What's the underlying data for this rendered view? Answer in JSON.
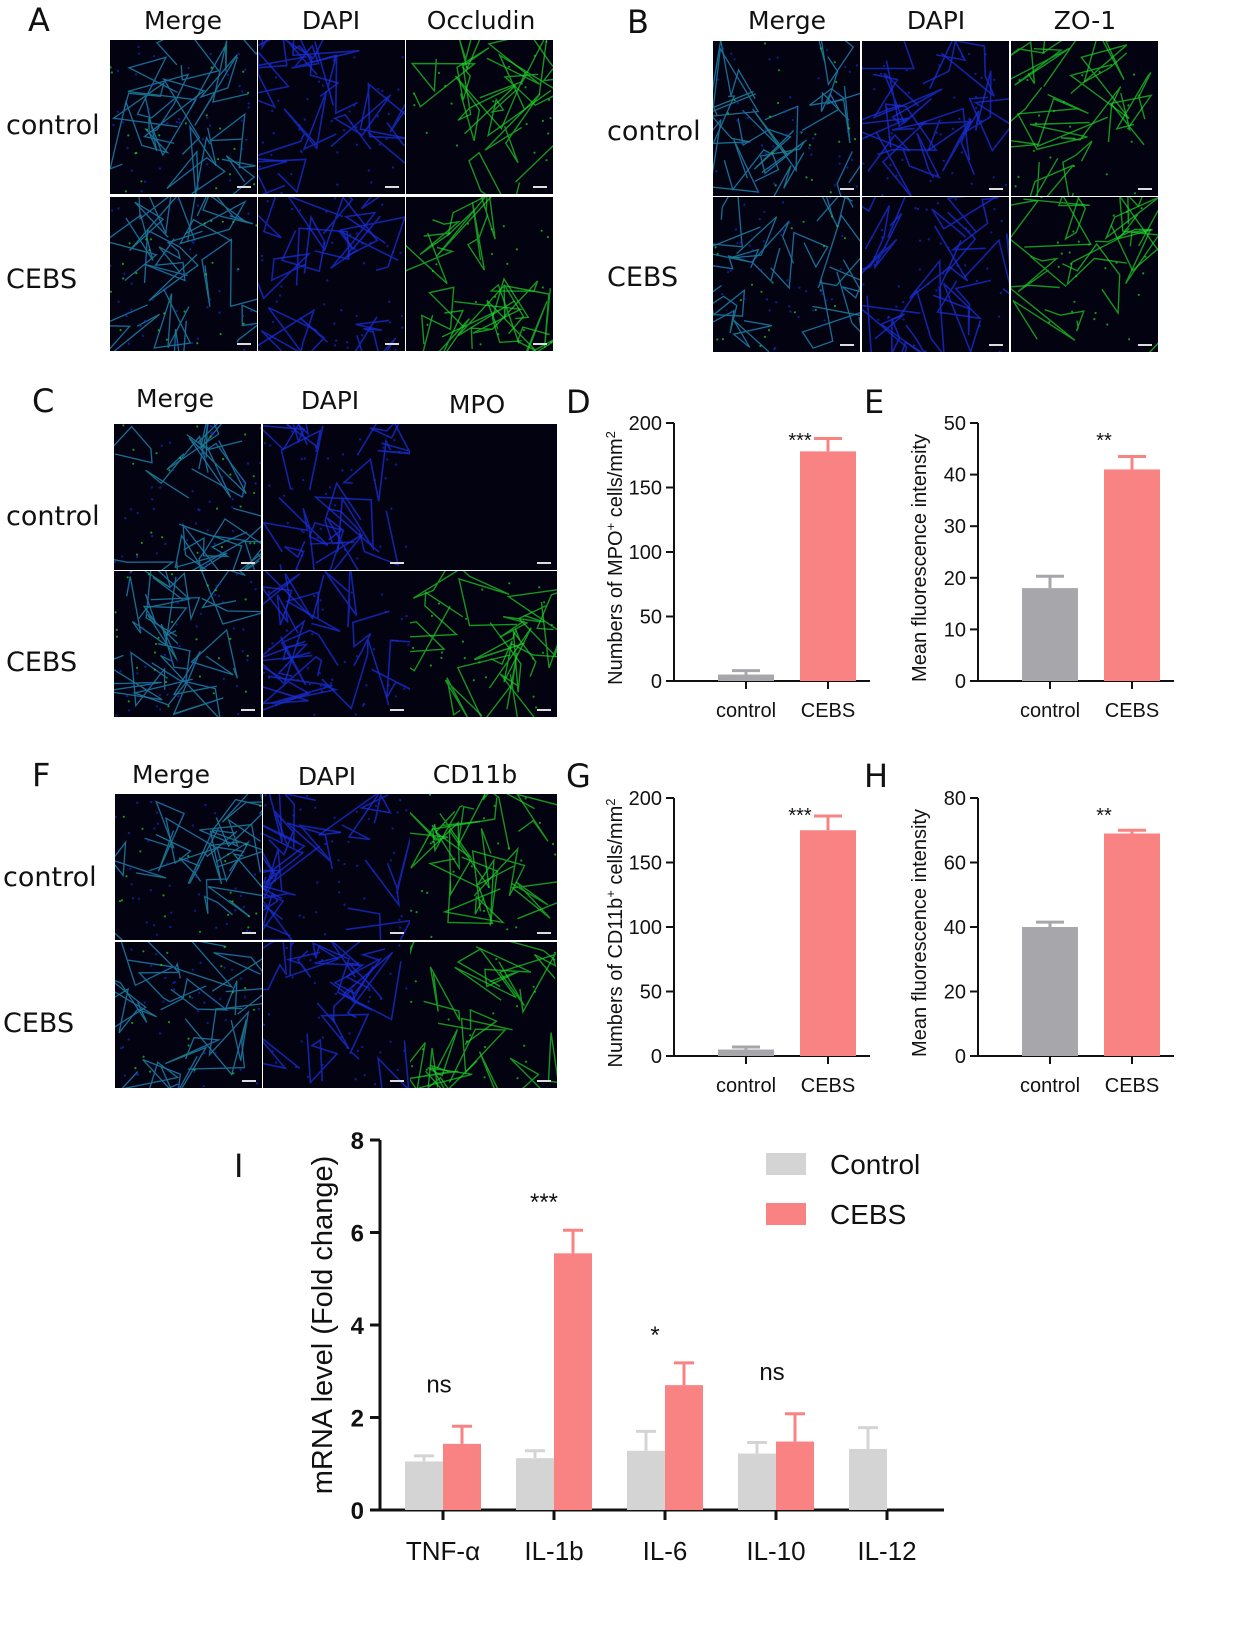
{
  "panels": {
    "A": {
      "label": "A",
      "columns": [
        "Merge",
        "DAPI",
        "Occludin"
      ],
      "rows": [
        "control",
        "CEBS"
      ]
    },
    "B": {
      "label": "B",
      "columns": [
        "Merge",
        "DAPI",
        "ZO-1"
      ],
      "rows": [
        "control",
        "CEBS"
      ]
    },
    "C": {
      "label": "C",
      "columns": [
        "Merge",
        "DAPI",
        "MPO"
      ],
      "rows": [
        "control",
        "CEBS"
      ]
    },
    "F": {
      "label": "F",
      "columns": [
        "Merge",
        "DAPI",
        "CD11b"
      ],
      "rows": [
        "control",
        "CEBS"
      ]
    },
    "D": {
      "label": "D"
    },
    "E": {
      "label": "E"
    },
    "G": {
      "label": "G"
    },
    "H": {
      "label": "H"
    },
    "I": {
      "label": "I"
    }
  },
  "colors": {
    "control_bar": "#a6a6ab",
    "cebs_bar": "#f98283",
    "control_I": "#d4d4d4",
    "cebs_I": "#f98283",
    "dapi": "#1a2fd8",
    "green": "#1fd42a"
  },
  "chart_data": [
    {
      "id": "D",
      "type": "bar",
      "categories": [
        "control",
        "CEBS"
      ],
      "values": [
        5,
        178
      ],
      "errors": [
        3,
        10
      ],
      "ylabel_parts": [
        "Numbers of MPO",
        "+",
        " cells/mm",
        "2"
      ],
      "ylim": [
        0,
        200
      ],
      "yticks": [
        0,
        50,
        100,
        150,
        200
      ],
      "significance": "***"
    },
    {
      "id": "E",
      "type": "bar",
      "categories": [
        "control",
        "CEBS"
      ],
      "values": [
        18,
        41
      ],
      "errors": [
        2.3,
        2.5
      ],
      "ylabel": "Mean fluorescence intensity",
      "ylim": [
        0,
        50
      ],
      "yticks": [
        0,
        10,
        20,
        30,
        40,
        50
      ],
      "significance": "**"
    },
    {
      "id": "G",
      "type": "bar",
      "categories": [
        "control",
        "CEBS"
      ],
      "values": [
        5,
        175
      ],
      "errors": [
        2,
        11
      ],
      "ylabel_parts": [
        "Numbers of CD11b",
        "+",
        " cells/mm",
        "2"
      ],
      "ylim": [
        0,
        200
      ],
      "yticks": [
        0,
        50,
        100,
        150,
        200
      ],
      "significance": "***"
    },
    {
      "id": "H",
      "type": "bar",
      "categories": [
        "control",
        "CEBS"
      ],
      "values": [
        40,
        69
      ],
      "errors": [
        1.5,
        1
      ],
      "ylabel": "Mean fluorescence intensity",
      "ylim": [
        0,
        80
      ],
      "yticks": [
        0,
        20,
        40,
        60,
        80
      ],
      "significance": "**"
    },
    {
      "id": "I",
      "type": "bar",
      "categories": [
        "TNF-α",
        "IL-1b",
        "IL-6",
        "IL-10",
        "IL-12"
      ],
      "series": [
        {
          "name": "Control",
          "values": [
            1.05,
            1.12,
            1.28,
            1.22,
            1.32
          ],
          "errors": [
            0.12,
            0.16,
            0.42,
            0.24,
            0.46
          ]
        },
        {
          "name": "CEBS",
          "values": [
            1.43,
            5.55,
            2.7,
            1.48,
            null
          ],
          "errors": [
            0.38,
            0.5,
            0.48,
            0.6,
            null
          ]
        }
      ],
      "ylabel": "mRNA level (Fold change)",
      "ylim": [
        0,
        8
      ],
      "yticks": [
        0,
        2,
        4,
        6,
        8
      ],
      "significance": [
        "ns",
        "***",
        "*",
        "ns",
        ""
      ],
      "legend": "top-right"
    }
  ]
}
